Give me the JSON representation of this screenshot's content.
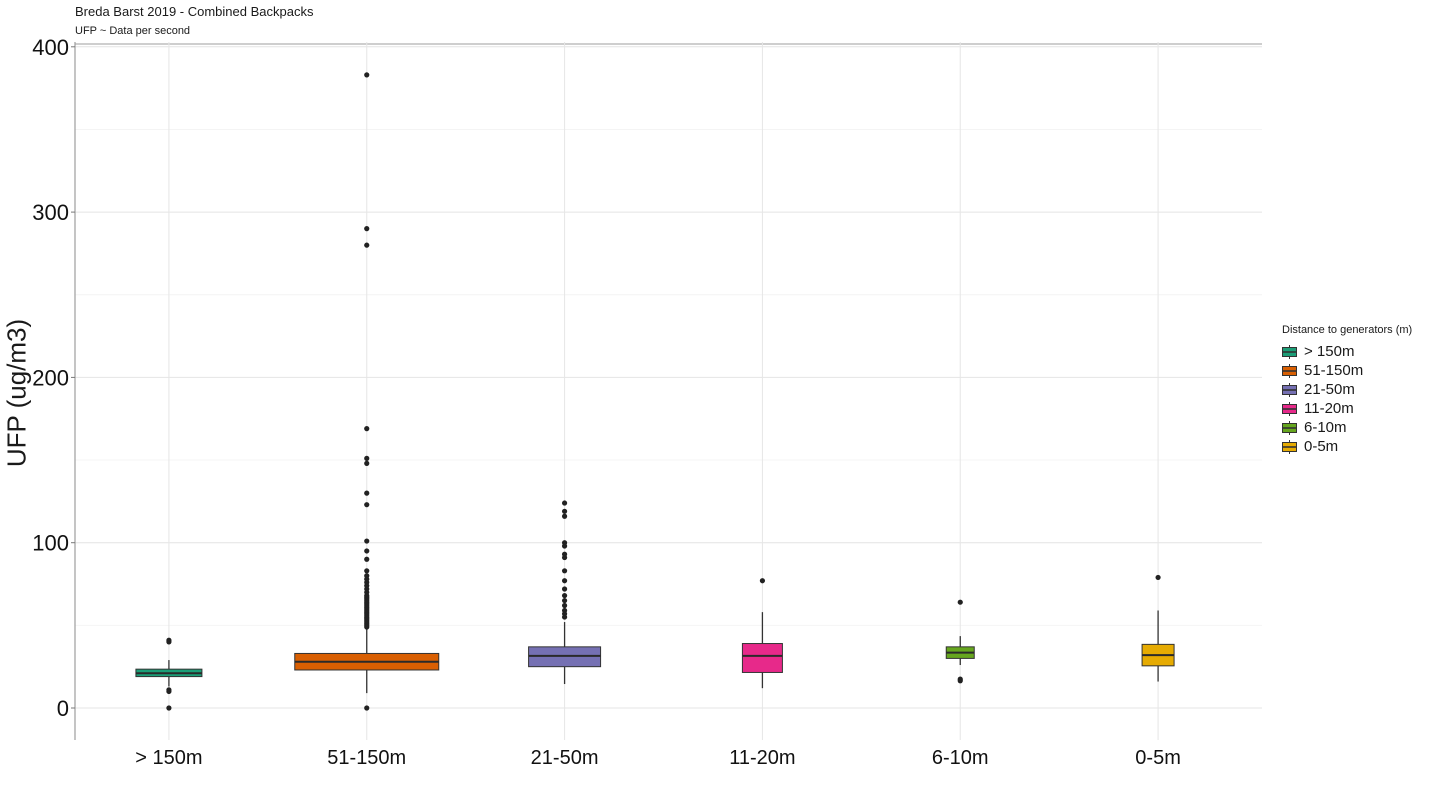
{
  "title": "Breda Barst 2019 - Combined Backpacks",
  "subtitle": "UFP ~ Data per second",
  "legend": {
    "title": "Distance to generators (m)",
    "items": [
      {
        "label": "> 150m",
        "color": "#1b9e77"
      },
      {
        "label": "51-150m",
        "color": "#d95f02"
      },
      {
        "label": "21-50m",
        "color": "#7570b3"
      },
      {
        "label": "11-20m",
        "color": "#e7298a"
      },
      {
        "label": "6-10m",
        "color": "#66a61e"
      },
      {
        "label": "0-5m",
        "color": "#e6ab02"
      }
    ]
  },
  "chart_data": {
    "type": "boxplot",
    "title": "Breda Barst 2019 - Combined Backpacks",
    "subtitle": "UFP ~ Data per second",
    "xlabel": "",
    "ylabel": "UFP (ug/m3)",
    "ylim": [
      -19,
      403
    ],
    "yticks": [
      0,
      100,
      200,
      300,
      400
    ],
    "grid": true,
    "legend_position": "right",
    "legend_title": "Distance to generators (m)",
    "categories": [
      "> 150m",
      "51-150m",
      "21-50m",
      "11-20m",
      "6-10m",
      "0-5m"
    ],
    "series": [
      {
        "name": "> 150m",
        "color": "#1b9e77",
        "whisker_low": 13,
        "q1": 19,
        "median": 21,
        "q3": 23.5,
        "whisker_high": 29,
        "outliers": [
          0,
          10,
          11,
          40,
          41
        ]
      },
      {
        "name": "51-150m",
        "color": "#d95f02",
        "whisker_low": 9,
        "q1": 23,
        "median": 28,
        "q3": 33,
        "whisker_high": 48,
        "outliers": [
          0,
          49,
          50,
          51,
          52,
          53,
          54,
          55,
          56,
          57,
          58,
          59,
          60,
          61,
          62,
          63,
          64,
          65,
          66,
          67,
          68,
          70,
          72,
          74,
          76,
          78,
          80,
          83,
          90,
          95,
          101,
          123,
          130,
          148,
          151,
          169,
          280,
          290,
          383
        ]
      },
      {
        "name": "21-50m",
        "color": "#7570b3",
        "whisker_low": 14.5,
        "q1": 25,
        "median": 31.5,
        "q3": 37,
        "whisker_high": 52,
        "outliers": [
          55,
          57,
          59,
          62,
          65,
          68,
          72,
          77,
          83,
          91,
          93,
          98,
          100,
          116,
          119,
          124
        ]
      },
      {
        "name": "11-20m",
        "color": "#e7298a",
        "whisker_low": 12,
        "q1": 21.5,
        "median": 31.5,
        "q3": 39,
        "whisker_high": 58,
        "outliers": [
          77
        ]
      },
      {
        "name": "6-10m",
        "color": "#66a61e",
        "whisker_low": 26,
        "q1": 30,
        "median": 33.5,
        "q3": 37,
        "whisker_high": 43.5,
        "outliers": [
          16.5,
          17.5,
          64
        ]
      },
      {
        "name": "0-5m",
        "color": "#e6ab02",
        "whisker_low": 16,
        "q1": 25.5,
        "median": 32,
        "q3": 38.5,
        "whisker_high": 59,
        "outliers": [
          79
        ]
      }
    ]
  },
  "axis": {
    "ylabel": "UFP (ug/m3)",
    "yticks": [
      "0",
      "100",
      "200",
      "300",
      "400"
    ]
  }
}
